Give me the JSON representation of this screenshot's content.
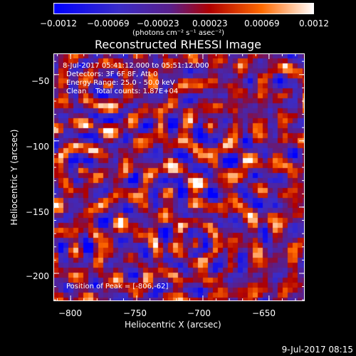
{
  "chart_data": {
    "type": "heatmap",
    "title": "Reconstructed RHESSI Image",
    "xlabel": "Heliocentric X (arcsec)",
    "ylabel": "Heliocentric Y (arcsec)",
    "xlim": [
      -813,
      -623
    ],
    "ylim": [
      -221,
      -34
    ],
    "x_ticks": [
      -800,
      -750,
      -700,
      -650
    ],
    "x_tick_labels": [
      "−800",
      "−750",
      "−700",
      "−650"
    ],
    "y_ticks": [
      -50,
      -100,
      -150,
      -200
    ],
    "y_tick_labels": [
      "−50",
      "−100",
      "−150",
      "−200"
    ],
    "colorbar": {
      "range": [
        -0.0012,
        0.0012
      ],
      "ticks": [
        -0.0012,
        -0.00069,
        -0.00023,
        0.00023,
        0.00069,
        0.0012
      ],
      "tick_labels": [
        "−0.0012",
        "−0.00069",
        "−0.00023",
        "0.00023",
        "0.00069",
        "0.0012"
      ],
      "label": "(photons cm⁻² s⁻¹ asec⁻²)"
    },
    "annotations": {
      "time": "8-Jul-2017 05:41:12.000 to 05:51:12.000",
      "detectors": "Detectors: 3F 6F 8F, Att 0",
      "energy": "Energy Range: 25.0 - 50.0 keV",
      "clean": "Clean    Total counts: 1.87E+04",
      "peak": "Position of Peak = [-806,-62]"
    },
    "timestamp": "9-Jul-2017 08:15",
    "colors": {
      "neg_low": "#0000ff",
      "neg_mid": "#3a2cc8",
      "zero": "#5a1f8a",
      "pos_low": "#b00000",
      "pos_mid": "#ff6a00",
      "pos_high": "#ffffff"
    }
  }
}
